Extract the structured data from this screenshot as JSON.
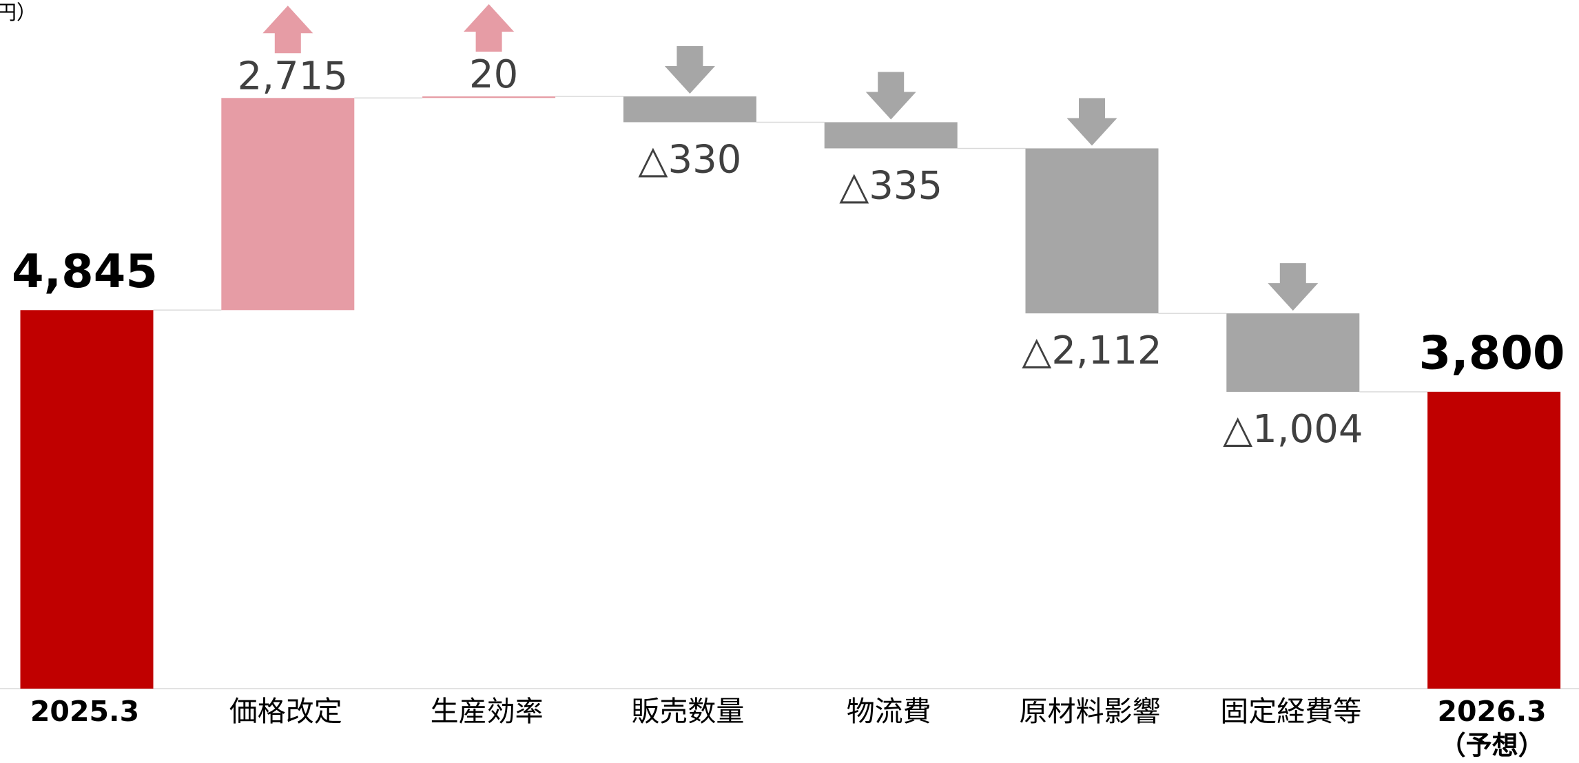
{
  "chart_data": {
    "type": "waterfall",
    "unit_label": "（百万円）",
    "categories": [
      "2025.3",
      "価格改定",
      "生産効率",
      "販売数量",
      "物流費",
      "原材料影響",
      "固定経費等",
      "2026.3"
    ],
    "category_note": "（予想）",
    "kinds": [
      "total",
      "delta",
      "delta",
      "delta",
      "delta",
      "delta",
      "delta",
      "total"
    ],
    "values": [
      4845,
      2715,
      20,
      -330,
      -335,
      -2112,
      -1004,
      3800
    ],
    "value_labels": [
      "4,845",
      "2,715",
      "20",
      "△330",
      "△335",
      "△2,112",
      "△1,004",
      "3,800"
    ],
    "colors": {
      "total": "#c00000",
      "increase": "#e69ca5",
      "decrease": "#a6a6a6"
    },
    "ylim": [
      0,
      8814
    ]
  }
}
